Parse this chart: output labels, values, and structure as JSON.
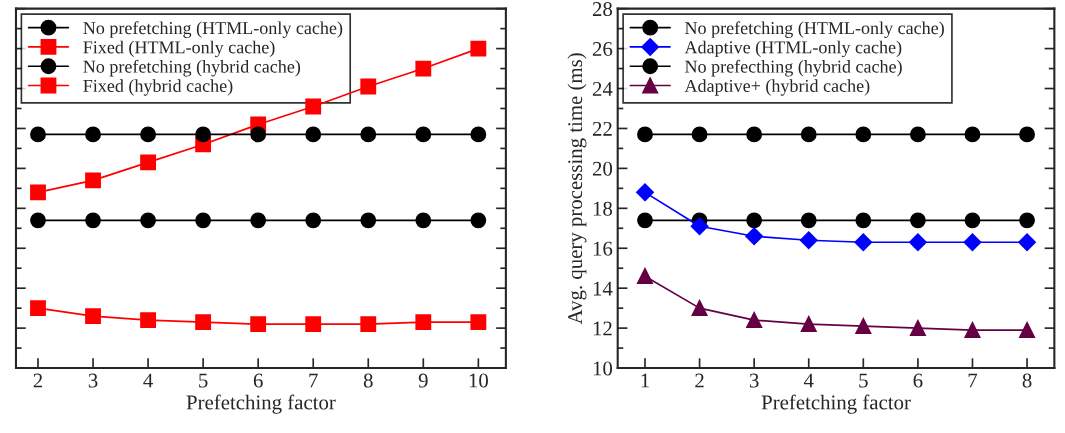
{
  "chart_data": [
    {
      "type": "line",
      "x": [
        2,
        3,
        4,
        5,
        6,
        7,
        8,
        9,
        10
      ],
      "xlabel": "Prefetching factor",
      "xlim": [
        1.6,
        10.5
      ],
      "xticks": [
        2,
        3,
        4,
        5,
        6,
        7,
        8,
        9,
        10
      ],
      "ylim": [
        10,
        28
      ],
      "yticks": [
        {
          "value": 10,
          "label": null
        },
        {
          "value": 12,
          "label": null
        },
        {
          "value": 14,
          "label": null
        },
        {
          "value": 16,
          "label": null
        },
        {
          "value": 18,
          "label": null
        },
        {
          "value": 20,
          "label": null
        },
        {
          "value": 22,
          "label": null
        },
        {
          "value": 24,
          "label": null
        },
        {
          "value": 26,
          "label": null
        },
        {
          "value": 28,
          "label": null
        }
      ],
      "tick_labels": "x",
      "legend": "top left",
      "grid": false,
      "series": [
        {
          "name": "No prefetching (HTML-only cache)",
          "color": "#000000",
          "marker": "circle",
          "values": [
            21.7,
            21.7,
            21.7,
            21.7,
            21.7,
            21.7,
            21.7,
            21.7,
            21.7
          ]
        },
        {
          "name": "Fixed (HTML-only cache)",
          "color": "#ff0000",
          "marker": "square",
          "values": [
            18.8,
            19.4,
            20.3,
            21.2,
            22.2,
            23.1,
            24.1,
            25.0,
            26.0
          ]
        },
        {
          "name": "No prefetching (hybrid cache)",
          "color": "#000000",
          "marker": "circle",
          "values": [
            17.4,
            17.4,
            17.4,
            17.4,
            17.4,
            17.4,
            17.4,
            17.4,
            17.4
          ]
        },
        {
          "name": "Fixed (hybrid cache)",
          "color": "#ff0000",
          "marker": "square",
          "values": [
            13.0,
            12.6,
            12.4,
            12.3,
            12.2,
            12.2,
            12.2,
            12.3,
            12.3
          ]
        }
      ]
    },
    {
      "type": "line",
      "x": [
        1,
        2,
        3,
        4,
        5,
        6,
        7,
        8
      ],
      "xlabel": "Prefetching factor",
      "ylabel": "Avg. query processing time (ms)",
      "xlim": [
        0.5,
        8.5
      ],
      "xticks": [
        1,
        2,
        3,
        4,
        5,
        6,
        7,
        8
      ],
      "ylim": [
        10,
        28
      ],
      "yticks": [
        10,
        12,
        14,
        16,
        18,
        20,
        22,
        24,
        26,
        28
      ],
      "legend": "top left",
      "grid": false,
      "series": [
        {
          "name": "No prefetching (HTML-only cache)",
          "color": "#000000",
          "marker": "circle",
          "values": [
            21.7,
            21.7,
            21.7,
            21.7,
            21.7,
            21.7,
            21.7,
            21.7
          ]
        },
        {
          "name": "Adaptive (HTML-only cache)",
          "color": "#0000ff",
          "marker": "diamond",
          "values": [
            18.8,
            17.1,
            16.6,
            16.4,
            16.3,
            16.3,
            16.3,
            16.3
          ]
        },
        {
          "name": "No prefecthing (hybrid cache)",
          "color": "#000000",
          "marker": "circle",
          "values": [
            17.4,
            17.4,
            17.4,
            17.4,
            17.4,
            17.4,
            17.4,
            17.4
          ]
        },
        {
          "name": "Adaptive+ (hybrid cache)",
          "color": "#660044",
          "marker": "triangle",
          "values": [
            14.6,
            13.0,
            12.4,
            12.2,
            12.1,
            12.0,
            11.9,
            11.9
          ]
        }
      ]
    }
  ]
}
